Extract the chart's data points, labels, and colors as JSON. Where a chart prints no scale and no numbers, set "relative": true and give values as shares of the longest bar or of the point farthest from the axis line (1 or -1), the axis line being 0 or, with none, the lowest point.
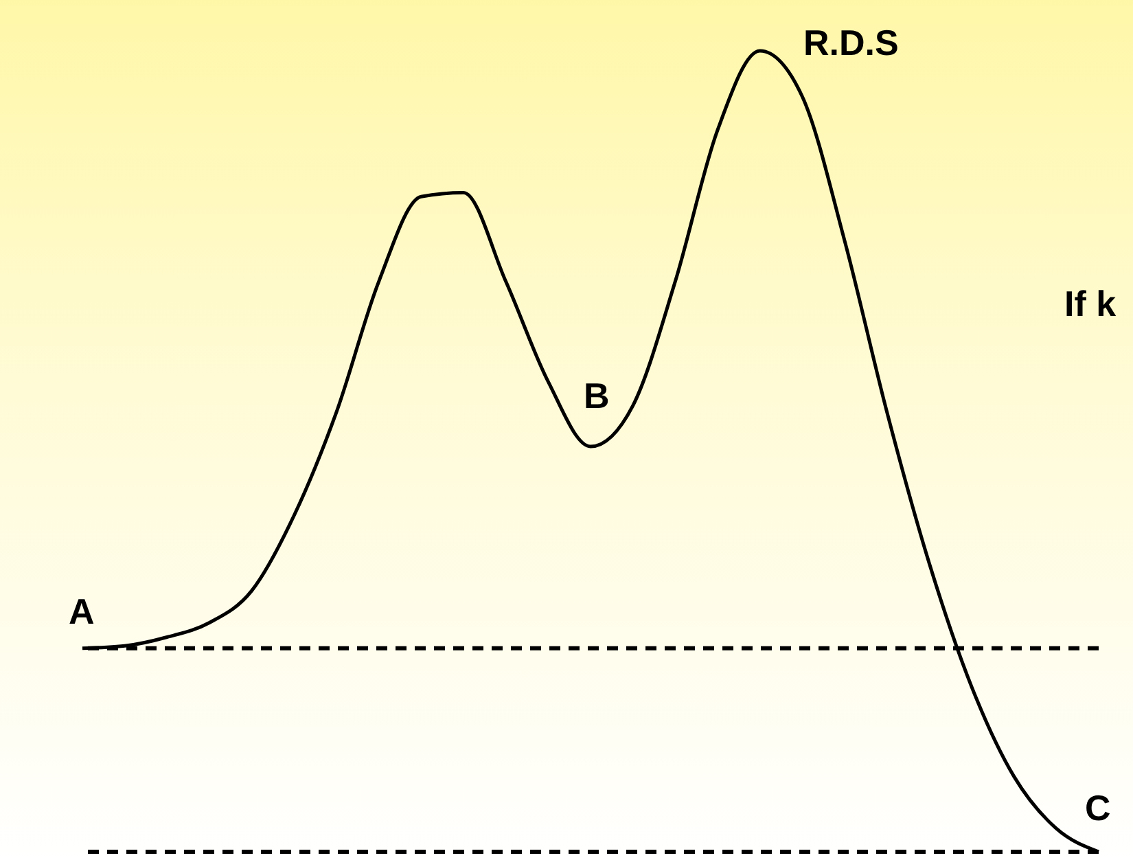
{
  "chart_data": {
    "type": "line",
    "relative": true,
    "line_style": "solid",
    "marker": "none",
    "categories": [
      null,
      null,
      null,
      null,
      null,
      null,
      null,
      null,
      null,
      null,
      null,
      null,
      null,
      null,
      null,
      null,
      null,
      null,
      null,
      null,
      null,
      null,
      null,
      null,
      null
    ],
    "series": [
      {
        "color": "#000000",
        "values": [
          0.254,
          0.257,
          0.268,
          0.286,
          0.326,
          0.42,
          0.549,
          0.712,
          0.818,
          0.823,
          0.712,
          0.587,
          0.506,
          0.557,
          0.712,
          0.901,
          1.0,
          0.943,
          0.763,
          0.549,
          0.36,
          0.206,
          0.094,
          0.029,
          0
        ]
      }
    ],
    "ref_lines": [
      {
        "axis": "y",
        "value": 0.254,
        "line_style": "dashed",
        "color": "#000000"
      },
      {
        "axis": "y",
        "value": 0,
        "line_style": "dashed",
        "color": "#000000"
      }
    ],
    "annotations": [
      "A",
      "B",
      "R.D.S",
      "C",
      "If k"
    ]
  }
}
